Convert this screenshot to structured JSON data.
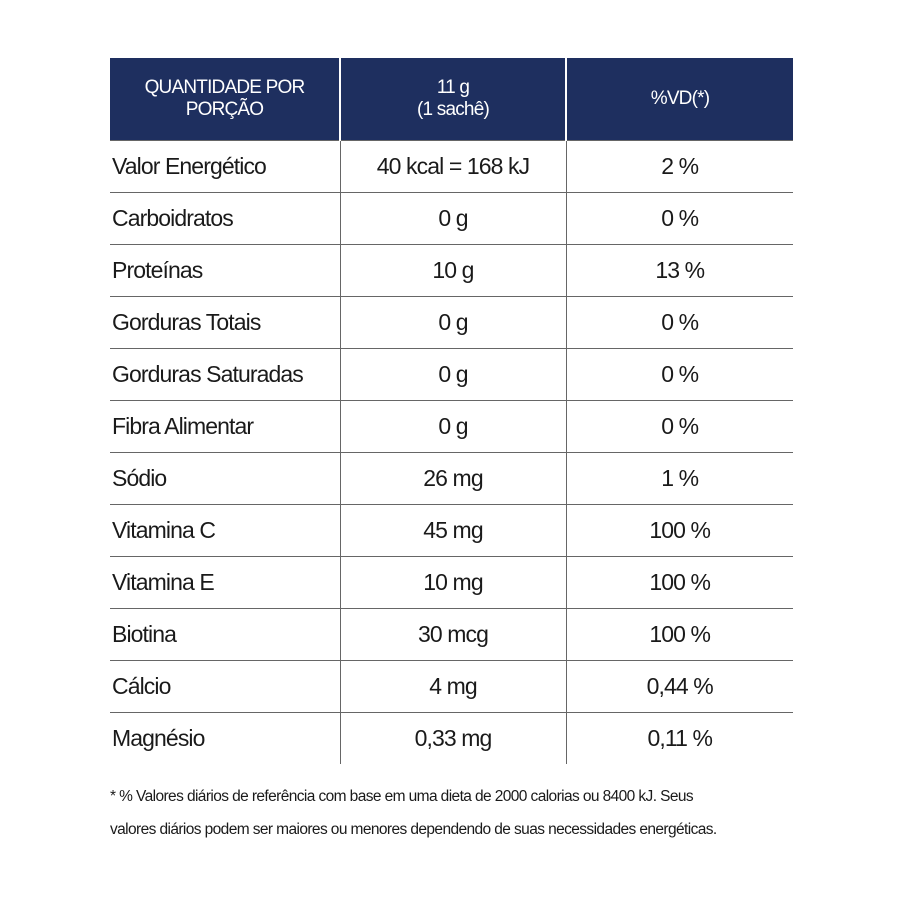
{
  "table": {
    "header": [
      [
        "QUANTIDADE POR",
        "PORÇÃO"
      ],
      [
        "11 g",
        "(1 sachê)"
      ],
      [
        "%VD(*)"
      ]
    ],
    "rows": [
      [
        "Valor Energético",
        "40 kcal = 168 kJ",
        "2 %"
      ],
      [
        "Carboidratos",
        "0 g",
        "0 %"
      ],
      [
        "Proteínas",
        "10 g",
        "13 %"
      ],
      [
        "Gorduras Totais",
        "0 g",
        "0 %"
      ],
      [
        "Gorduras Saturadas",
        "0 g",
        "0 %"
      ],
      [
        "Fibra Alimentar",
        "0 g",
        "0 %"
      ],
      [
        "Sódio",
        "26 mg",
        "1 %"
      ],
      [
        "Vitamina C",
        "45 mg",
        "100 %"
      ],
      [
        "Vitamina E",
        "10 mg",
        "100 %"
      ],
      [
        "Biotina",
        "30 mcg",
        "100 %"
      ],
      [
        "Cálcio",
        "4 mg",
        "0,44 %"
      ],
      [
        "Magnésio",
        "0,33 mg",
        "0,11 %"
      ]
    ]
  },
  "footnote": [
    "* % Valores diários de referência com base em uma dieta de 2000 calorias ou 8400 kJ. Seus",
    "valores diários podem ser maiores ou menores dependendo de suas necessidades energéticas."
  ]
}
